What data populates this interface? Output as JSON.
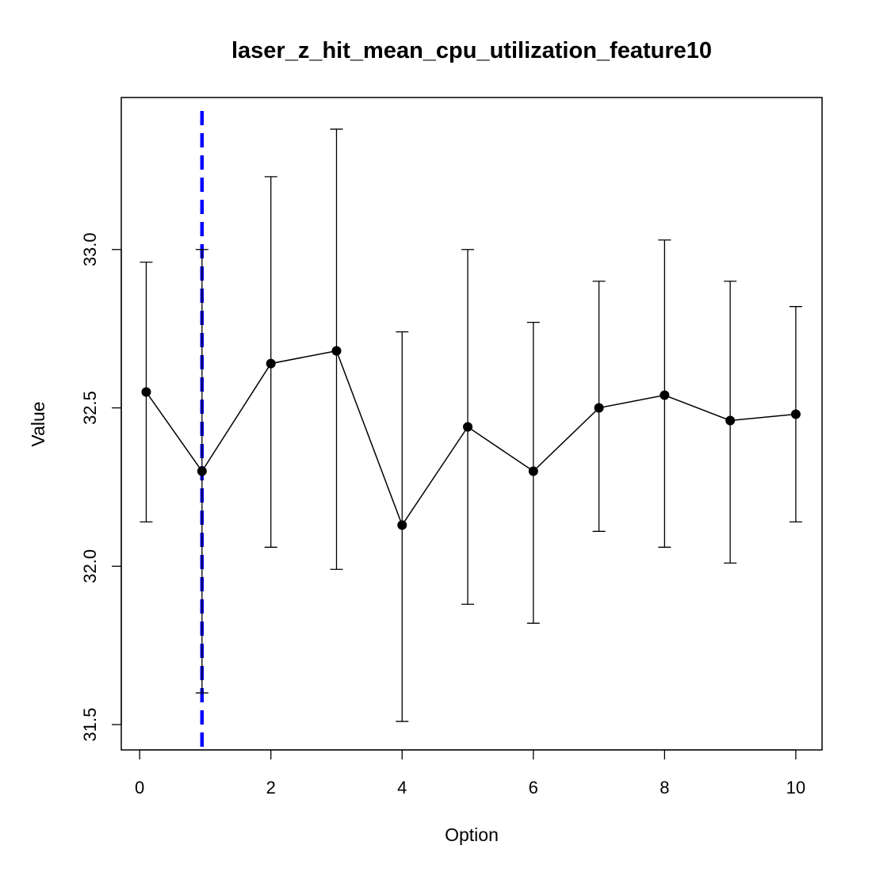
{
  "chart_data": {
    "type": "line",
    "title": "laser_z_hit_mean_cpu_utilization_feature10",
    "xlabel": "Option",
    "ylabel": "Value",
    "xlim": [
      -0.28,
      10.4
    ],
    "ylim": [
      31.42,
      33.48
    ],
    "xticks": [
      0,
      2,
      4,
      6,
      8,
      10
    ],
    "xtick_labels": [
      "0",
      "2",
      "4",
      "6",
      "8",
      "10"
    ],
    "yticks": [
      31.5,
      32.0,
      32.5,
      33.0
    ],
    "ytick_labels": [
      "31.5",
      "32.0",
      "32.5",
      "33.0"
    ],
    "grid": false,
    "legend": "none",
    "series": [
      {
        "x": [
          0.1,
          0.95,
          2,
          3,
          4,
          5,
          6,
          7,
          8,
          9,
          10
        ],
        "y": [
          32.55,
          32.3,
          32.64,
          32.68,
          32.13,
          32.44,
          32.3,
          32.5,
          32.54,
          32.46,
          32.48
        ],
        "err_low": [
          32.14,
          31.6,
          32.06,
          31.99,
          31.51,
          31.88,
          31.82,
          32.11,
          32.06,
          32.01,
          32.14
        ],
        "err_high": [
          32.96,
          33.0,
          33.23,
          33.38,
          32.74,
          33.0,
          32.77,
          32.9,
          33.03,
          32.9,
          32.82
        ],
        "color": "#000000"
      }
    ],
    "vline": {
      "x": 0.95,
      "color": "#0000ff",
      "style": "dashed"
    }
  }
}
